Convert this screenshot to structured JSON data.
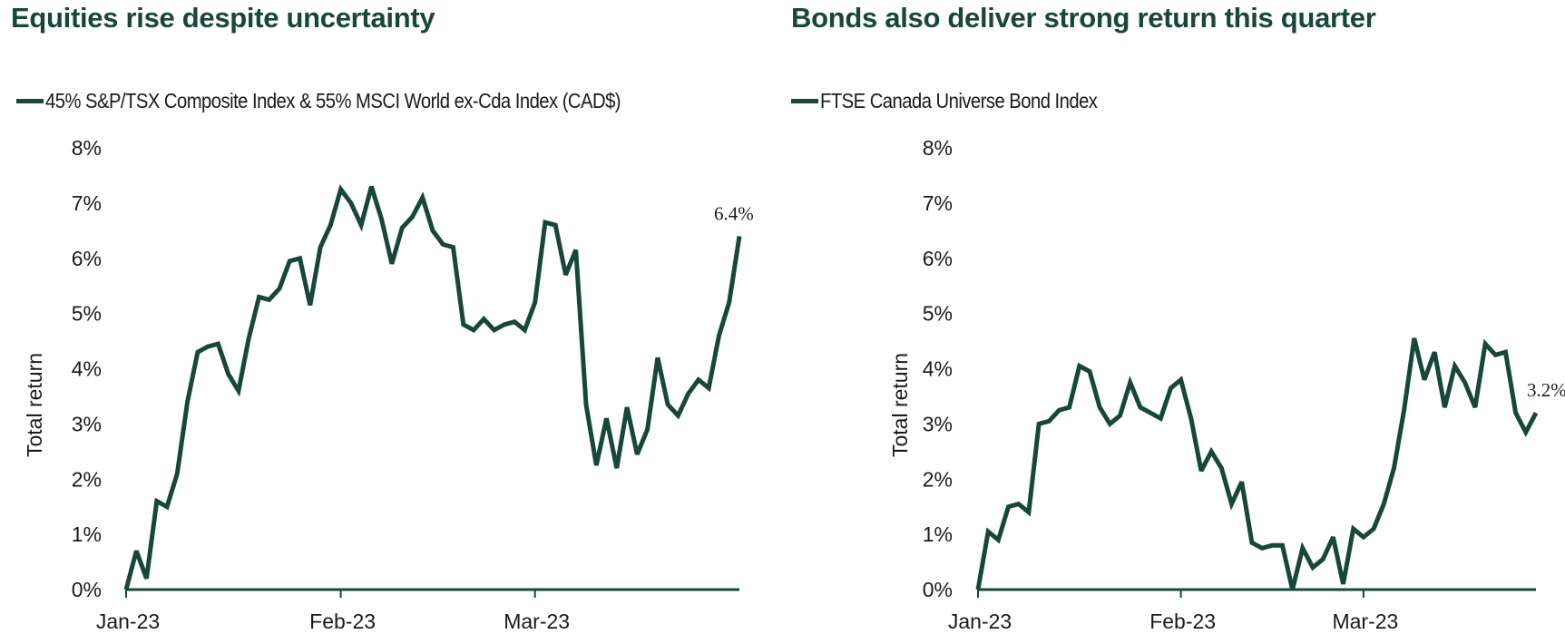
{
  "colors": {
    "line": "#17473a",
    "title": "#17473a",
    "text": "#1a1a1a"
  },
  "chart_data": [
    {
      "type": "line",
      "title": "Equities rise despite uncertainty",
      "legend": "45% S&P/TSX Composite Index & 55% MSCI World ex-Cda Index (CAD$)",
      "legend_position": "top-left",
      "ylabel": "Total return",
      "xlabel": "",
      "ylim": [
        0,
        8
      ],
      "yticks": [
        "0%",
        "1%",
        "2%",
        "3%",
        "4%",
        "5%",
        "6%",
        "7%",
        "8%"
      ],
      "xticks": [
        "Jan-23",
        "Feb-23",
        "Mar-23"
      ],
      "xtick_index": [
        0,
        21,
        40
      ],
      "end_label": "6.4%",
      "grid": false,
      "series": [
        {
          "name": "45% S&P/TSX Composite Index & 55% MSCI World ex-Cda Index (CAD$)",
          "values": [
            0.0,
            0.7,
            0.2,
            1.6,
            1.5,
            2.1,
            3.4,
            4.3,
            4.4,
            4.45,
            3.9,
            3.6,
            4.55,
            5.3,
            5.25,
            5.45,
            5.95,
            6.0,
            5.15,
            6.2,
            6.6,
            7.25,
            7.0,
            6.6,
            7.3,
            6.7,
            5.9,
            6.55,
            6.75,
            7.1,
            6.5,
            6.25,
            6.2,
            4.8,
            4.7,
            4.9,
            4.7,
            4.8,
            4.85,
            4.7,
            5.2,
            6.65,
            6.6,
            5.7,
            6.15,
            3.35,
            2.25,
            3.1,
            2.2,
            3.3,
            2.45,
            2.9,
            4.2,
            3.35,
            3.15,
            3.55,
            3.8,
            3.65,
            4.6,
            5.2,
            6.4
          ]
        }
      ]
    },
    {
      "type": "line",
      "title": "Bonds also deliver strong return this quarter",
      "legend": "FTSE Canada Universe Bond Index",
      "legend_position": "top-left",
      "ylabel": "Total return",
      "xlabel": "",
      "ylim": [
        0,
        8
      ],
      "yticks": [
        "0%",
        "1%",
        "2%",
        "3%",
        "4%",
        "5%",
        "6%",
        "7%",
        "8%"
      ],
      "xticks": [
        "Jan-23",
        "Feb-23",
        "Mar-23"
      ],
      "xtick_index": [
        0,
        20,
        38
      ],
      "end_label": "3.2%",
      "grid": false,
      "series": [
        {
          "name": "FTSE Canada Universe Bond Index",
          "values": [
            0.0,
            1.05,
            0.9,
            1.5,
            1.55,
            1.4,
            3.0,
            3.05,
            3.25,
            3.3,
            4.05,
            3.95,
            3.3,
            3.0,
            3.15,
            3.75,
            3.3,
            3.2,
            3.1,
            3.65,
            3.8,
            3.1,
            2.15,
            2.5,
            2.2,
            1.55,
            1.95,
            0.85,
            0.75,
            0.8,
            0.8,
            0.0,
            0.75,
            0.4,
            0.55,
            0.95,
            0.1,
            1.1,
            0.95,
            1.1,
            1.55,
            2.2,
            3.25,
            4.55,
            3.8,
            4.3,
            3.3,
            4.05,
            3.75,
            3.3,
            4.45,
            4.25,
            4.3,
            3.2,
            2.85,
            3.2
          ]
        }
      ]
    }
  ]
}
